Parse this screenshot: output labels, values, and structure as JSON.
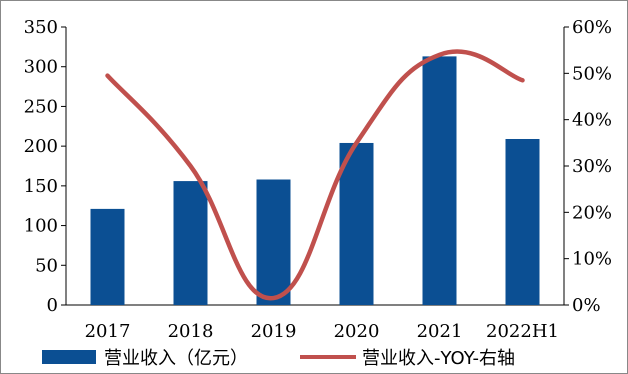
{
  "chart_data": {
    "type": "bar",
    "categories": [
      "2017",
      "2018",
      "2019",
      "2020",
      "2021",
      "2022H1"
    ],
    "series": [
      {
        "name": "营业收入（亿元）",
        "type": "bar",
        "axis": "left",
        "color": "#0B4F93",
        "values": [
          121,
          156,
          158,
          204,
          313,
          209
        ]
      },
      {
        "name": "营业收入-YOY-右轴",
        "type": "line",
        "axis": "right",
        "color": "#C0504D",
        "values": [
          49.5,
          30,
          1.5,
          35,
          54,
          48.5
        ]
      }
    ],
    "left_axis": {
      "ylim": [
        0,
        350
      ],
      "ticks": [
        "0",
        "50",
        "100",
        "150",
        "200",
        "250",
        "300",
        "350"
      ]
    },
    "right_axis": {
      "ylim": [
        0,
        60
      ],
      "ticks": [
        "0%",
        "10%",
        "20%",
        "30%",
        "40%",
        "50%",
        "60%"
      ]
    },
    "grid": false,
    "legend_position": "bottom"
  }
}
